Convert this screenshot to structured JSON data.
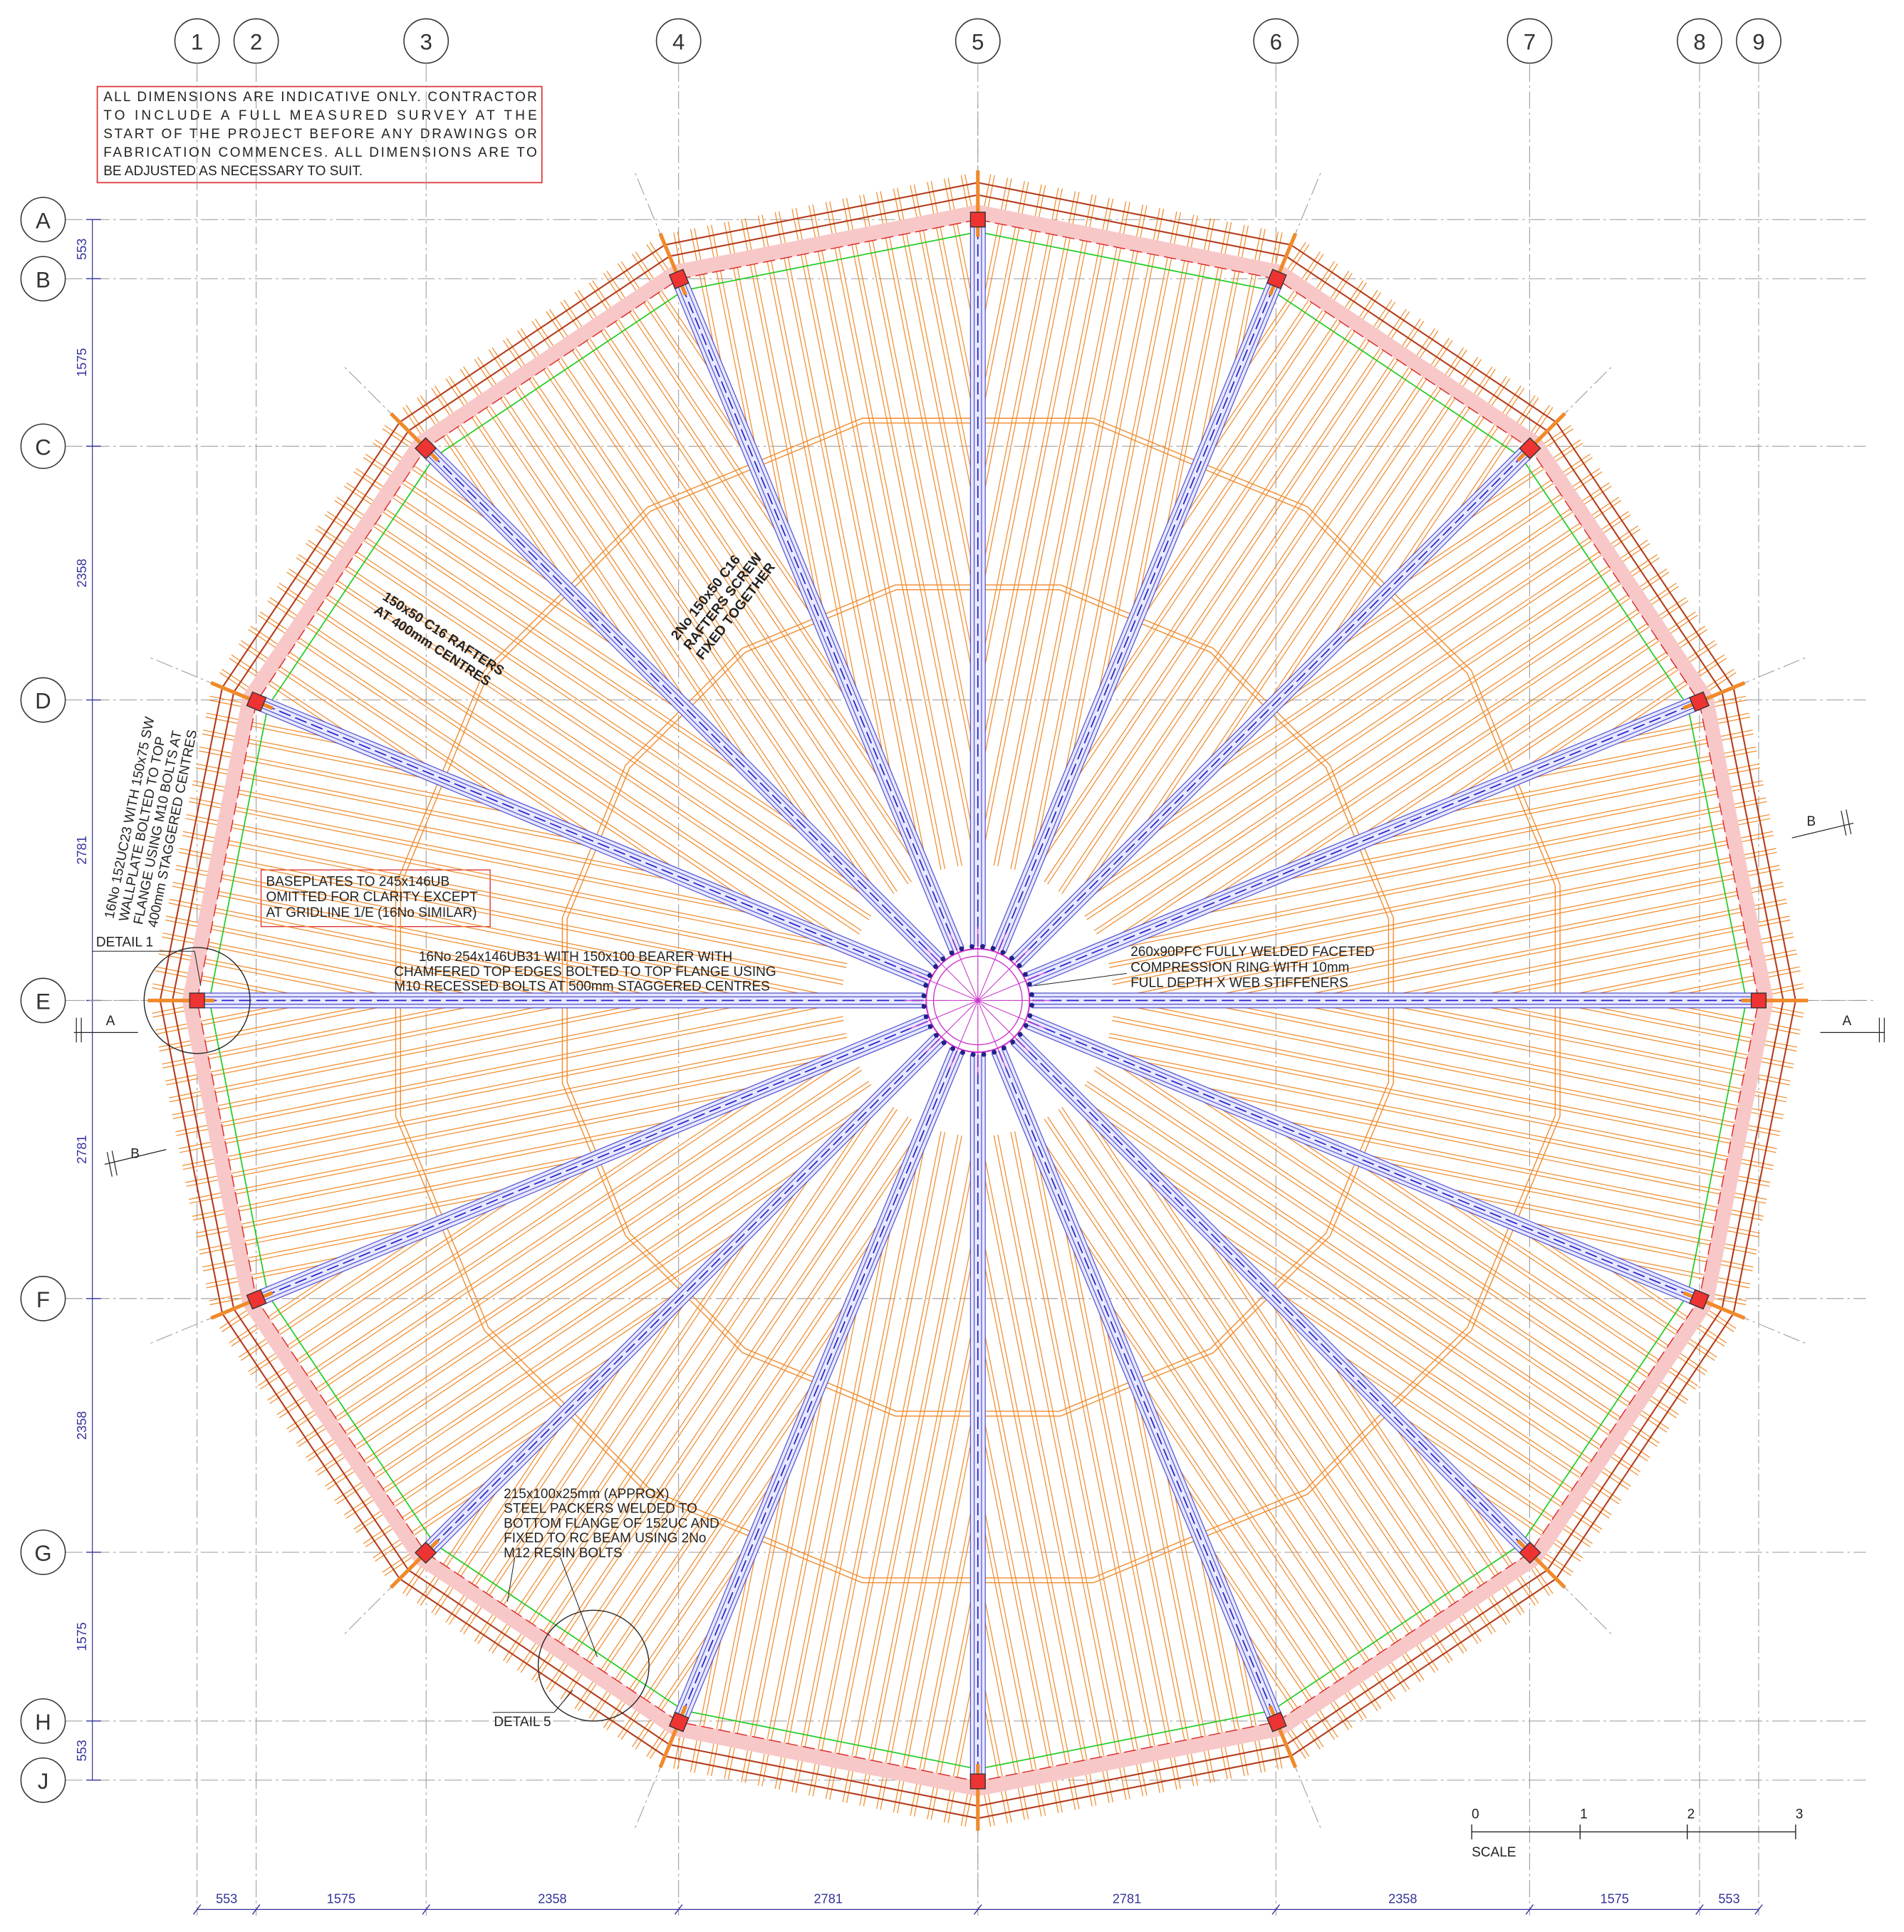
{
  "grid": {
    "columns": [
      "1",
      "2",
      "3",
      "4",
      "5",
      "6",
      "7",
      "8",
      "9"
    ],
    "rows": [
      "A",
      "B",
      "C",
      "D",
      "E",
      "F",
      "G",
      "H",
      "J"
    ]
  },
  "dimensions": {
    "vertical": [
      553,
      1575,
      2358,
      2781,
      2781,
      2358,
      1575,
      553
    ],
    "horizontal": [
      553,
      1575,
      2358,
      2781,
      2781,
      2358,
      1575,
      553
    ]
  },
  "notes": {
    "general": [
      "ALL DIMENSIONS ARE INDICATIVE ONLY. CONTRACTOR",
      "TO INCLUDE A FULL MEASURED SURVEY AT THE",
      "START OF THE PROJECT BEFORE ANY DRAWINGS OR",
      "FABRICATION COMMENCES. ALL DIMENSIONS ARE TO",
      "BE ADJUSTED AS NECESSARY TO SUIT."
    ],
    "rafters": [
      "150x50 C16 RAFTERS",
      "AT 400mm CENTRES"
    ],
    "paired_rafters": [
      "2No 150x50 C16",
      "RAFTERS SCREW",
      "FIXED TOGETHER"
    ],
    "wallplate": [
      "16No 152UC23 WITH 150x75 SW",
      "WALLPLATE BOLTED TO TOP",
      "FLANGE USING M10 BOLTS AT",
      "400mm STAGGERED CENTRES"
    ],
    "baseplates": [
      "BASEPLATES TO 245x146UB",
      "OMITTED FOR CLARITY EXCEPT",
      "AT GRIDLINE 1/E (16No SIMILAR)"
    ],
    "beams": [
      "16No 254x146UB31 WITH 150x100 BEARER WITH",
      "CHAMFERED TOP EDGES BOLTED TO TOP FLANGE USING",
      "M10 RECESSED BOLTS AT 500mm STAGGERED CENTRES"
    ],
    "compression_ring": [
      "260x90PFC FULLY WELDED FACETED",
      "COMPRESSION RING WITH 10mm",
      "FULL DEPTH X WEB STIFFENERS"
    ],
    "packers": [
      "215x100x25mm (APPROX)",
      "STEEL PACKERS WELDED TO",
      "BOTTOM FLANGE OF 152UC AND",
      "FIXED TO RC BEAM USING 2No",
      "M12 RESIN BOLTS"
    ]
  },
  "details": [
    "DETAIL 1",
    "DETAIL 5"
  ],
  "sections": {
    "a_left": "A",
    "a_right": "A",
    "b_top": "B",
    "b_bottom": "B"
  },
  "scale": {
    "label": "SCALE",
    "ticks": [
      "0",
      "1",
      "2",
      "3"
    ]
  }
}
